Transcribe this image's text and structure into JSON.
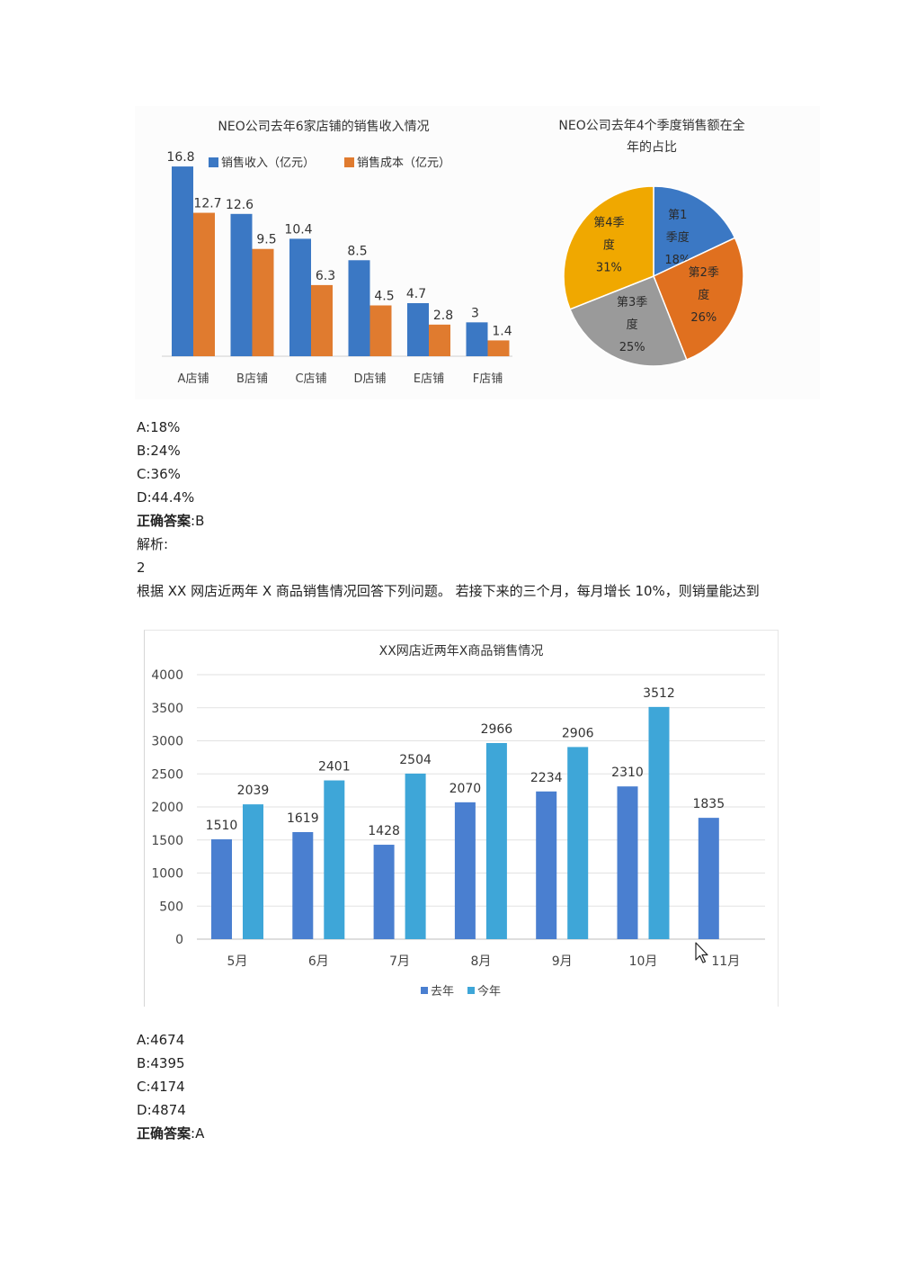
{
  "q1": {
    "options": [
      {
        "letter": "A",
        "text": "18%"
      },
      {
        "letter": "B",
        "text": "24%"
      },
      {
        "letter": "C",
        "text": "36%"
      },
      {
        "letter": "D",
        "text": "44.4%"
      }
    ],
    "answer_label": "正确答案",
    "answer_value": "B",
    "analysis_label": "解析:"
  },
  "q2": {
    "number": "2",
    "text": "根据 XX 网店近两年 X 商品销售情况回答下列问题。 若接下来的三个月，每月增长 10%，则销量能达到",
    "options": [
      {
        "letter": "A",
        "text": "4674"
      },
      {
        "letter": "B",
        "text": "4395"
      },
      {
        "letter": "C",
        "text": "4174"
      },
      {
        "letter": "D",
        "text": "4874"
      }
    ],
    "answer_label": "正确答案",
    "answer_value": "A"
  },
  "colors": {
    "blue": "#3b78c4",
    "orange": "#e07b2f",
    "q1": "#3b78c4",
    "q2": "#e0701f",
    "q3": "#9a9a9a",
    "q4": "#f0a800",
    "last_year": "#4a7fd0",
    "this_year": "#3ea6d8"
  },
  "chart_data": [
    {
      "type": "bar",
      "title": "NEO公司去年6家店铺的销售收入情况",
      "categories": [
        "A店铺",
        "B店铺",
        "C店铺",
        "D店铺",
        "E店铺",
        "F店铺"
      ],
      "series": [
        {
          "name": "销售收入（亿元）",
          "values": [
            16.8,
            12.6,
            10.4,
            8.5,
            4.7,
            3
          ]
        },
        {
          "name": "销售成本（亿元）",
          "values": [
            12.7,
            9.5,
            6.3,
            4.5,
            2.8,
            1.4
          ]
        }
      ],
      "ylim": [
        0,
        18
      ],
      "legend": "top"
    },
    {
      "type": "pie",
      "title": "NEO公司去年4个季度销售额在全年的占比",
      "slices": [
        {
          "label": "第1季度",
          "value": 18,
          "display": "18%"
        },
        {
          "label": "第2季度",
          "value": 26,
          "display": "26%"
        },
        {
          "label": "第3季度",
          "value": 25,
          "display": "25%"
        },
        {
          "label": "第4季度",
          "value": 31,
          "display": "31%"
        }
      ]
    },
    {
      "type": "bar",
      "title": "XX网店近两年X商品销售情况",
      "categories": [
        "5月",
        "6月",
        "7月",
        "8月",
        "9月",
        "10月",
        "11月"
      ],
      "series": [
        {
          "name": "去年",
          "values": [
            1510,
            1619,
            1428,
            2070,
            2234,
            2310,
            1835
          ]
        },
        {
          "name": "今年",
          "values": [
            2039,
            2401,
            2504,
            2966,
            2906,
            3512,
            null
          ]
        }
      ],
      "yticks": [
        "0",
        "500",
        "1000",
        "1500",
        "2000",
        "2500",
        "3000",
        "3500",
        "4000"
      ],
      "ylim": [
        0,
        4000
      ],
      "grid": true,
      "legend": "bottom"
    }
  ]
}
